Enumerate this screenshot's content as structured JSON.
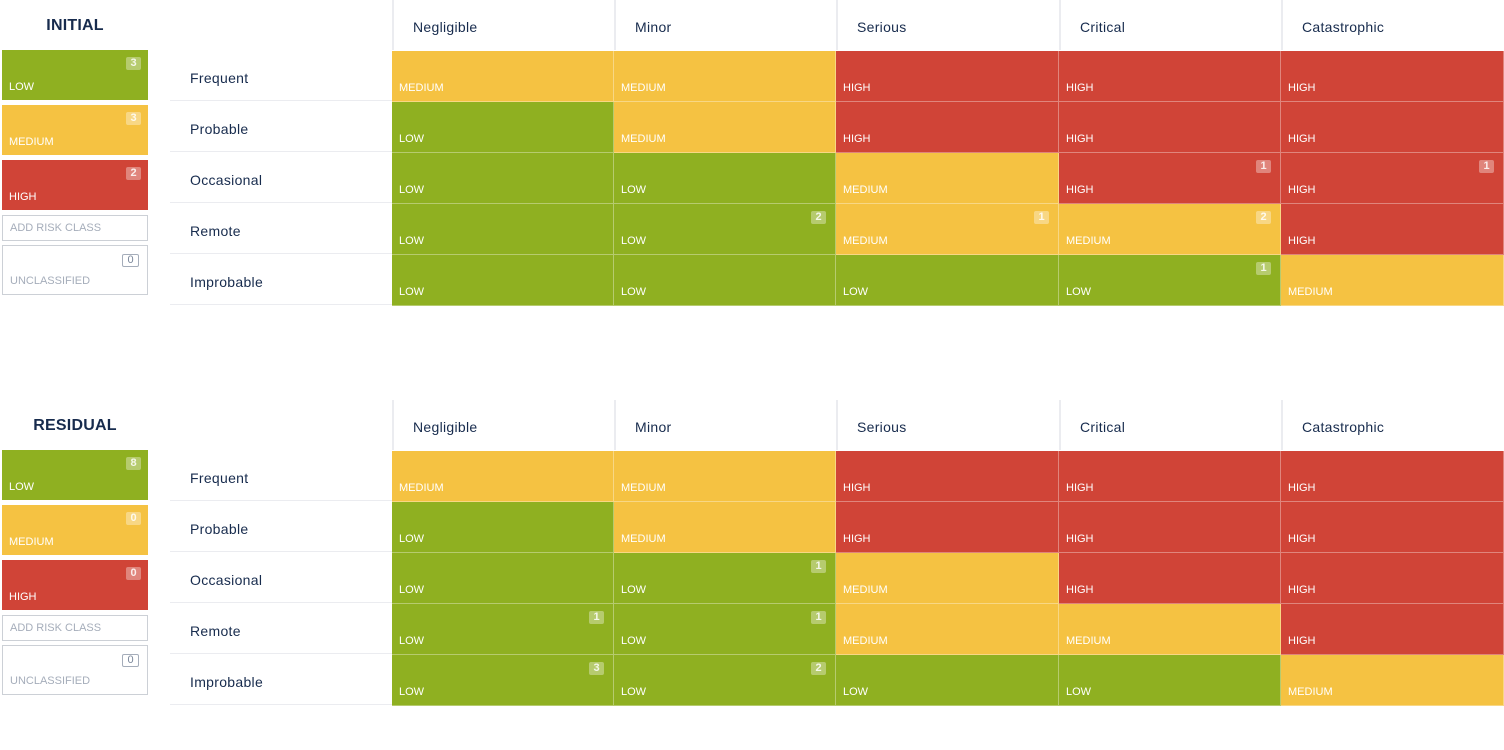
{
  "colors": {
    "LOW": "#8fb021",
    "MEDIUM": "#f5c242",
    "HIGH": "#d04437"
  },
  "columns": [
    "Negligible",
    "Minor",
    "Serious",
    "Critical",
    "Catastrophic"
  ],
  "rows": [
    "Frequent",
    "Probable",
    "Occasional",
    "Remote",
    "Improbable"
  ],
  "matrices": [
    {
      "title": "INITIAL",
      "legend": [
        {
          "label": "LOW",
          "count": "3"
        },
        {
          "label": "MEDIUM",
          "count": "3"
        },
        {
          "label": "HIGH",
          "count": "2"
        }
      ],
      "add_placeholder": "ADD RISK CLASS",
      "unclassified": {
        "label": "UNCLASSIFIED",
        "count": "0"
      },
      "cells": [
        [
          {
            "level": "MEDIUM",
            "count": ""
          },
          {
            "level": "MEDIUM",
            "count": ""
          },
          {
            "level": "HIGH",
            "count": ""
          },
          {
            "level": "HIGH",
            "count": ""
          },
          {
            "level": "HIGH",
            "count": ""
          }
        ],
        [
          {
            "level": "LOW",
            "count": ""
          },
          {
            "level": "MEDIUM",
            "count": ""
          },
          {
            "level": "HIGH",
            "count": ""
          },
          {
            "level": "HIGH",
            "count": ""
          },
          {
            "level": "HIGH",
            "count": ""
          }
        ],
        [
          {
            "level": "LOW",
            "count": ""
          },
          {
            "level": "LOW",
            "count": ""
          },
          {
            "level": "MEDIUM",
            "count": ""
          },
          {
            "level": "HIGH",
            "count": "1"
          },
          {
            "level": "HIGH",
            "count": "1"
          }
        ],
        [
          {
            "level": "LOW",
            "count": ""
          },
          {
            "level": "LOW",
            "count": "2"
          },
          {
            "level": "MEDIUM",
            "count": "1"
          },
          {
            "level": "MEDIUM",
            "count": "2"
          },
          {
            "level": "HIGH",
            "count": ""
          }
        ],
        [
          {
            "level": "LOW",
            "count": ""
          },
          {
            "level": "LOW",
            "count": ""
          },
          {
            "level": "LOW",
            "count": ""
          },
          {
            "level": "LOW",
            "count": "1"
          },
          {
            "level": "MEDIUM",
            "count": ""
          }
        ]
      ]
    },
    {
      "title": "RESIDUAL",
      "legend": [
        {
          "label": "LOW",
          "count": "8"
        },
        {
          "label": "MEDIUM",
          "count": "0"
        },
        {
          "label": "HIGH",
          "count": "0"
        }
      ],
      "add_placeholder": "ADD RISK CLASS",
      "unclassified": {
        "label": "UNCLASSIFIED",
        "count": "0"
      },
      "cells": [
        [
          {
            "level": "MEDIUM",
            "count": ""
          },
          {
            "level": "MEDIUM",
            "count": ""
          },
          {
            "level": "HIGH",
            "count": ""
          },
          {
            "level": "HIGH",
            "count": ""
          },
          {
            "level": "HIGH",
            "count": ""
          }
        ],
        [
          {
            "level": "LOW",
            "count": ""
          },
          {
            "level": "MEDIUM",
            "count": ""
          },
          {
            "level": "HIGH",
            "count": ""
          },
          {
            "level": "HIGH",
            "count": ""
          },
          {
            "level": "HIGH",
            "count": ""
          }
        ],
        [
          {
            "level": "LOW",
            "count": ""
          },
          {
            "level": "LOW",
            "count": "1"
          },
          {
            "level": "MEDIUM",
            "count": ""
          },
          {
            "level": "HIGH",
            "count": ""
          },
          {
            "level": "HIGH",
            "count": ""
          }
        ],
        [
          {
            "level": "LOW",
            "count": "1"
          },
          {
            "level": "LOW",
            "count": "1"
          },
          {
            "level": "MEDIUM",
            "count": ""
          },
          {
            "level": "MEDIUM",
            "count": ""
          },
          {
            "level": "HIGH",
            "count": ""
          }
        ],
        [
          {
            "level": "LOW",
            "count": "3"
          },
          {
            "level": "LOW",
            "count": "2"
          },
          {
            "level": "LOW",
            "count": ""
          },
          {
            "level": "LOW",
            "count": ""
          },
          {
            "level": "MEDIUM",
            "count": ""
          }
        ]
      ]
    }
  ]
}
